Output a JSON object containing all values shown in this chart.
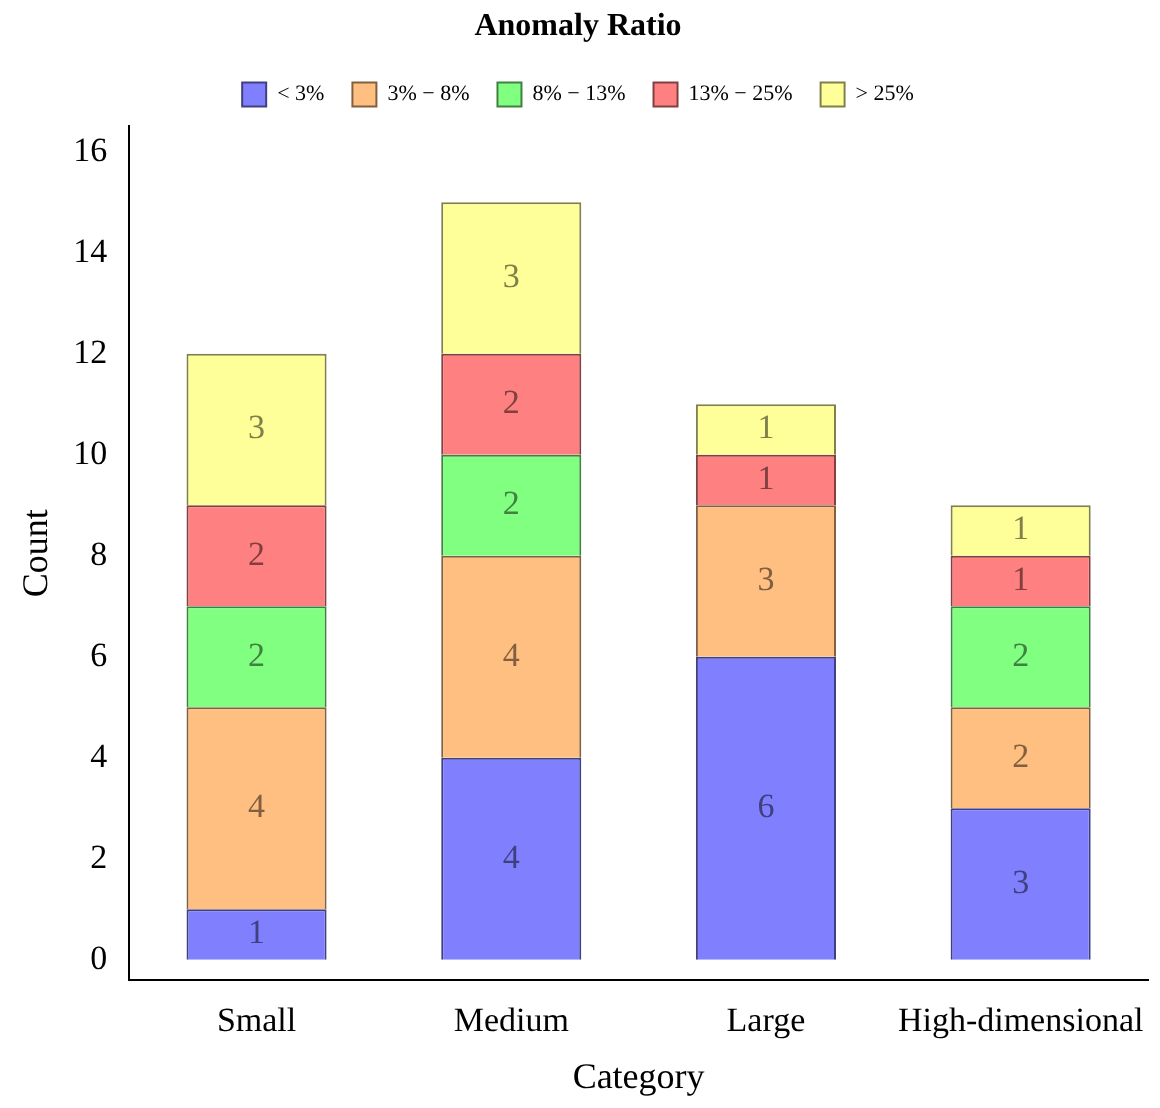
{
  "chart_data": {
    "type": "bar",
    "title": "Anomaly Ratio",
    "xlabel": "Category",
    "ylabel": "Count",
    "categories": [
      "Small",
      "Medium",
      "Large",
      "High-dimensional"
    ],
    "stacked": true,
    "data_labels": true,
    "legend": "top",
    "grid": false,
    "ylim": [
      -0.4,
      16.5
    ],
    "yticks": [
      0,
      2,
      4,
      6,
      8,
      10,
      12,
      14,
      16
    ],
    "series": [
      {
        "name": "< 3%",
        "color": "#8080ff",
        "values": [
          1,
          4,
          6,
          3
        ]
      },
      {
        "name": "3% − 8%",
        "color": "#ffbf80",
        "values": [
          4,
          4,
          3,
          2
        ]
      },
      {
        "name": "8% − 13%",
        "color": "#80ff80",
        "values": [
          2,
          2,
          null,
          2
        ]
      },
      {
        "name": "13% − 25%",
        "color": "#ff8080",
        "values": [
          2,
          2,
          1,
          1
        ]
      },
      {
        "name": "> 25%",
        "color": "#ffff99",
        "values": [
          3,
          3,
          1,
          1
        ]
      }
    ]
  }
}
